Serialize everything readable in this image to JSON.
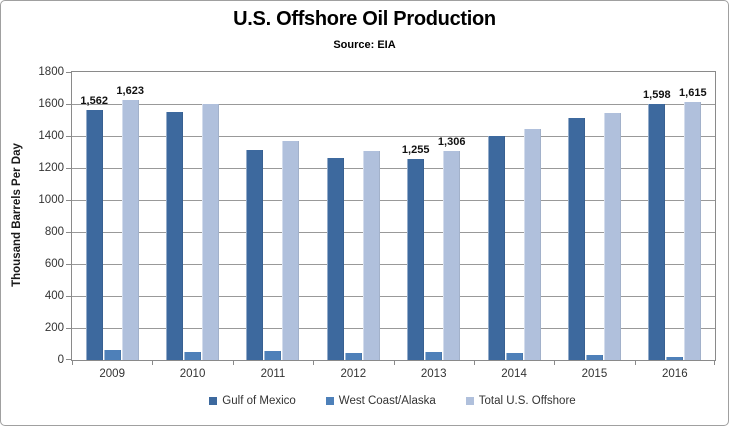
{
  "header": {
    "title": "U.S. Offshore Oil Production",
    "subtitle": "Source: EIA"
  },
  "chart_data": {
    "type": "bar",
    "title": "U.S. Offshore Oil Production",
    "subtitle": "Source: EIA",
    "xlabel": "",
    "ylabel": "Thousand Barrels Per Day",
    "ylim": [
      0,
      1800
    ],
    "ytick_step": 200,
    "yticks": [
      "0",
      "200",
      "400",
      "600",
      "800",
      "1000",
      "1200",
      "1400",
      "1600",
      "1800"
    ],
    "grid": true,
    "legend_position": "bottom",
    "categories": [
      "2009",
      "2010",
      "2011",
      "2012",
      "2013",
      "2014",
      "2015",
      "2016"
    ],
    "series": [
      {
        "name": "Gulf of Mexico",
        "color": "#3D699E",
        "values": [
          1562,
          1551,
          1312,
          1262,
          1255,
          1397,
          1512,
          1598
        ],
        "data_labels": [
          "1,562",
          "",
          "",
          "",
          "1,255",
          "",
          "",
          "1,598"
        ]
      },
      {
        "name": "West Coast/Alaska",
        "color": "#4E80B9",
        "values": [
          61,
          50,
          55,
          46,
          51,
          46,
          34,
          17
        ],
        "data_labels": [
          "",
          "",
          "",
          "",
          "",
          "",
          "",
          ""
        ]
      },
      {
        "name": "Total U.S. Offshore",
        "color": "#B0C0DC",
        "values": [
          1623,
          1601,
          1367,
          1308,
          1306,
          1443,
          1546,
          1615
        ],
        "data_labels": [
          "1,623",
          "",
          "",
          "",
          "1,306",
          "",
          "",
          "1,615"
        ]
      }
    ],
    "colors": {
      "gridline": "#999999",
      "axis": "#8a8a8a",
      "frame_border": "#a0a0a0"
    }
  }
}
